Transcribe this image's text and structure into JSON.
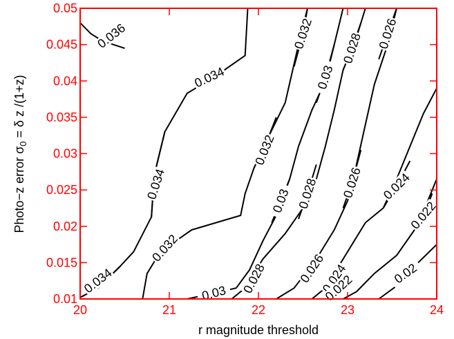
{
  "chart_data": {
    "type": "contour",
    "xlabel": "r magnitude threshold",
    "ylabel": {
      "prefix": "Photo−z error σ",
      "sub": "0",
      "suffix": " = δ z /(1+z)"
    },
    "xlim": [
      20,
      24
    ],
    "ylim": [
      0.01,
      0.05
    ],
    "x_ticks": [
      "20",
      "21",
      "22",
      "23",
      "24"
    ],
    "y_ticks": [
      "0.01",
      "0.015",
      "0.02",
      "0.025",
      "0.03",
      "0.035",
      "0.04",
      "0.045",
      "0.05"
    ],
    "grid": false,
    "colors": {
      "axes": "#ff0000",
      "contours": "#000000"
    },
    "contours": [
      {
        "level": "0.036",
        "label_at": [
          20.35,
          0.0462
        ],
        "label_angle": -38,
        "points": [
          [
            20.0,
            0.048
          ],
          [
            20.12,
            0.0465
          ],
          [
            20.25,
            0.0455
          ],
          [
            20.5,
            0.0445
          ]
        ]
      },
      {
        "level": "0.034",
        "label_at": [
          21.45,
          0.0405
        ],
        "label_angle": -25,
        "points": [
          [
            20.0,
            0.0102
          ],
          [
            20.2,
            0.0115
          ],
          [
            20.45,
            0.0145
          ],
          [
            20.6,
            0.0165
          ],
          [
            20.8,
            0.0213
          ],
          [
            20.83,
            0.027
          ],
          [
            20.95,
            0.033
          ],
          [
            21.2,
            0.0383
          ],
          [
            21.5,
            0.0405
          ],
          [
            21.85,
            0.0435
          ],
          [
            21.88,
            0.05
          ]
        ]
      },
      {
        "level": "0.034",
        "label_at": [
          20.2,
          0.0125
        ],
        "label_angle": -38,
        "points": [
          [
            20.0,
            0.0102
          ],
          [
            20.2,
            0.0115
          ],
          [
            20.45,
            0.0145
          ]
        ]
      },
      {
        "level": "0.034",
        "label_at": [
          20.85,
          0.0258
        ],
        "label_angle": -72,
        "points": [
          [
            20.8,
            0.0213
          ],
          [
            20.83,
            0.027
          ],
          [
            20.95,
            0.033
          ]
        ]
      },
      {
        "level": "0.032",
        "label_at": [
          20.95,
          0.017
        ],
        "label_angle": -48,
        "points": [
          [
            20.7,
            0.01
          ],
          [
            20.75,
            0.0135
          ],
          [
            20.9,
            0.0165
          ],
          [
            21.25,
            0.0195
          ],
          [
            21.8,
            0.0215
          ],
          [
            21.85,
            0.0245
          ],
          [
            21.95,
            0.028
          ],
          [
            22.12,
            0.0325
          ],
          [
            22.3,
            0.037
          ],
          [
            22.45,
            0.045
          ],
          [
            22.55,
            0.05
          ]
        ]
      },
      {
        "level": "0.032",
        "label_at": [
          22.07,
          0.0305
        ],
        "label_angle": -68,
        "points": [
          [
            21.95,
            0.028
          ],
          [
            22.12,
            0.0325
          ],
          [
            22.2,
            0.035
          ]
        ]
      },
      {
        "level": "0.032",
        "label_at": [
          22.5,
          0.0465
        ],
        "label_angle": -72,
        "points": [
          [
            22.4,
            0.042
          ],
          [
            22.5,
            0.0465
          ],
          [
            22.55,
            0.05
          ]
        ]
      },
      {
        "level": "0.03",
        "label_at": [
          21.5,
          0.0108
        ],
        "label_angle": -15,
        "points": [
          [
            21.2,
            0.01
          ],
          [
            21.5,
            0.0108
          ],
          [
            21.75,
            0.0115
          ],
          [
            21.9,
            0.014
          ],
          [
            22.05,
            0.018
          ],
          [
            22.2,
            0.0215
          ],
          [
            22.35,
            0.0265
          ],
          [
            22.45,
            0.031
          ],
          [
            22.6,
            0.036
          ],
          [
            22.75,
            0.04
          ],
          [
            22.85,
            0.045
          ],
          [
            22.95,
            0.05
          ]
        ]
      },
      {
        "level": "0.03",
        "label_at": [
          22.25,
          0.0235
        ],
        "label_angle": -70,
        "points": [
          [
            22.15,
            0.0205
          ],
          [
            22.25,
            0.0235
          ],
          [
            22.35,
            0.0265
          ]
        ]
      },
      {
        "level": "0.03",
        "label_at": [
          22.75,
          0.0405
        ],
        "label_angle": -72,
        "points": [
          [
            22.65,
            0.037
          ],
          [
            22.75,
            0.0405
          ],
          [
            22.85,
            0.045
          ]
        ]
      },
      {
        "level": "0.028",
        "label_at": [
          21.95,
          0.0128
        ],
        "label_angle": -62,
        "points": [
          [
            21.7,
            0.01
          ],
          [
            21.85,
            0.0115
          ],
          [
            22.05,
            0.0155
          ],
          [
            22.3,
            0.019
          ],
          [
            22.5,
            0.0225
          ],
          [
            22.65,
            0.0265
          ],
          [
            22.75,
            0.031
          ],
          [
            22.85,
            0.036
          ],
          [
            22.95,
            0.0415
          ],
          [
            23.1,
            0.046
          ],
          [
            23.2,
            0.05
          ]
        ]
      },
      {
        "level": "0.028",
        "label_at": [
          22.55,
          0.0245
        ],
        "label_angle": -72,
        "points": [
          [
            22.45,
            0.021
          ],
          [
            22.55,
            0.0245
          ],
          [
            22.65,
            0.0285
          ]
        ]
      },
      {
        "level": "0.028",
        "label_at": [
          23.05,
          0.0445
        ],
        "label_angle": -72,
        "points": [
          [
            22.95,
            0.0415
          ],
          [
            23.05,
            0.0445
          ],
          [
            23.15,
            0.048
          ]
        ]
      },
      {
        "level": "0.026",
        "label_at": [
          22.6,
          0.0142
        ],
        "label_angle": -56,
        "points": [
          [
            22.2,
            0.01
          ],
          [
            22.4,
            0.0115
          ],
          [
            22.65,
            0.0155
          ],
          [
            22.85,
            0.0195
          ],
          [
            23.0,
            0.0235
          ],
          [
            23.1,
            0.0285
          ],
          [
            23.2,
            0.034
          ],
          [
            23.3,
            0.0395
          ],
          [
            23.45,
            0.045
          ],
          [
            23.55,
            0.05
          ]
        ]
      },
      {
        "level": "0.026",
        "label_at": [
          23.05,
          0.026
        ],
        "label_angle": -72,
        "points": [
          [
            22.95,
            0.0225
          ],
          [
            23.05,
            0.026
          ],
          [
            23.15,
            0.0305
          ]
        ]
      },
      {
        "level": "0.026",
        "label_at": [
          23.45,
          0.0465
        ],
        "label_angle": -72,
        "points": [
          [
            23.35,
            0.043
          ],
          [
            23.45,
            0.0465
          ],
          [
            23.55,
            0.05
          ]
        ]
      },
      {
        "level": "0.024",
        "label_at": [
          22.85,
          0.0128
        ],
        "label_angle": -56,
        "points": [
          [
            22.6,
            0.01
          ],
          [
            22.75,
            0.0115
          ],
          [
            23.0,
            0.0165
          ],
          [
            23.2,
            0.0205
          ],
          [
            23.4,
            0.0225
          ],
          [
            23.55,
            0.0265
          ],
          [
            23.7,
            0.031
          ],
          [
            23.85,
            0.0355
          ],
          [
            24.0,
            0.039
          ]
        ]
      },
      {
        "level": "0.024",
        "label_at": [
          23.55,
          0.0255
        ],
        "label_angle": -45,
        "points": [
          [
            23.4,
            0.0225
          ],
          [
            23.55,
            0.0255
          ],
          [
            23.7,
            0.029
          ]
        ]
      },
      {
        "level": "0.022",
        "label_at": [
          22.9,
          0.0115
        ],
        "label_angle": -42,
        "points": [
          [
            22.95,
            0.01
          ],
          [
            23.1,
            0.011
          ],
          [
            23.3,
            0.0135
          ],
          [
            23.55,
            0.016
          ],
          [
            23.75,
            0.0195
          ],
          [
            23.9,
            0.0235
          ],
          [
            24.0,
            0.0265
          ]
        ]
      },
      {
        "level": "0.022",
        "label_at": [
          23.85,
          0.0215
        ],
        "label_angle": -50,
        "points": [
          [
            23.75,
            0.0195
          ],
          [
            23.85,
            0.0215
          ],
          [
            23.95,
            0.0245
          ]
        ]
      },
      {
        "level": "0.02",
        "label_at": [
          23.65,
          0.0135
        ],
        "label_angle": -36,
        "points": [
          [
            23.35,
            0.01
          ],
          [
            23.55,
            0.0118
          ],
          [
            23.75,
            0.0145
          ],
          [
            24.0,
            0.0175
          ]
        ]
      }
    ]
  }
}
